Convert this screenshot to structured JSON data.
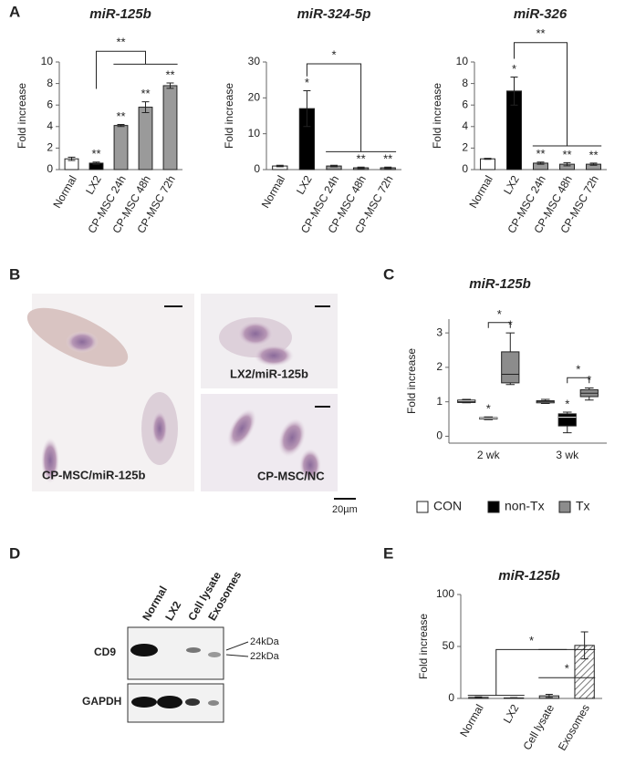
{
  "chart_data": [
    {
      "type": "bar",
      "panel": "A",
      "title": "miR-125b",
      "ylabel": "Fold increase",
      "categories": [
        "Normal",
        "LX2",
        "CP-MSC 24h",
        "CP-MSC 48h",
        "CP-MSC 72h"
      ],
      "values": [
        1,
        0.6,
        4.1,
        5.8,
        7.8
      ],
      "errors": [
        0.15,
        0.1,
        0.1,
        0.5,
        0.25
      ],
      "colors": [
        "#ffffff",
        "#000000",
        "#9a9a9a",
        "#9a9a9a",
        "#9a9a9a"
      ],
      "stars": [
        null,
        "**",
        "**",
        "**",
        "**"
      ],
      "annotations": [
        "**"
      ],
      "ylim": [
        0,
        10
      ],
      "yticks": [
        0,
        2,
        4,
        6,
        8,
        10
      ]
    },
    {
      "type": "bar",
      "title": "miR-324-5p",
      "ylabel": "Fold increase",
      "categories": [
        "Normal",
        "LX2",
        "CP-MSC 24h",
        "CP-MSC 48h",
        "CP-MSC 72h"
      ],
      "values": [
        1,
        17,
        1,
        0.5,
        0.5
      ],
      "errors": [
        0.2,
        5,
        0.2,
        0.2,
        0.2
      ],
      "colors": [
        "#ffffff",
        "#000000",
        "#9a9a9a",
        "#9a9a9a",
        "#9a9a9a"
      ],
      "stars": [
        null,
        "*",
        null,
        "**",
        "**"
      ],
      "annotations": [
        "*"
      ],
      "ylim": [
        0,
        30
      ],
      "yticks": [
        0,
        10,
        20,
        30
      ]
    },
    {
      "type": "bar",
      "title": "miR-326",
      "ylabel": "Fold increase",
      "categories": [
        "Normal",
        "LX2",
        "CP-MSC 24h",
        "CP-MSC 48h",
        "CP-MSC 72h"
      ],
      "values": [
        1,
        7.3,
        0.6,
        0.5,
        0.5
      ],
      "errors": [
        0.05,
        1.3,
        0.1,
        0.15,
        0.1
      ],
      "colors": [
        "#ffffff",
        "#000000",
        "#9a9a9a",
        "#9a9a9a",
        "#9a9a9a"
      ],
      "stars": [
        null,
        "*",
        "**",
        "**",
        "**"
      ],
      "annotations": [
        "**"
      ],
      "ylim": [
        0,
        10
      ],
      "yticks": [
        0,
        2,
        4,
        6,
        8,
        10
      ]
    },
    {
      "type": "box",
      "panel": "C",
      "title": "miR-125b",
      "ylabel": "Fold increase",
      "categories": [
        "2 wk",
        "3 wk"
      ],
      "series": [
        {
          "name": "CON",
          "color": "#ffffff",
          "stars": [
            null,
            null
          ],
          "values": [
            {
              "min": 0.97,
              "q1": 0.98,
              "median": 1.0,
              "q3": 1.05,
              "max": 1.07
            },
            {
              "min": 0.95,
              "q1": 0.97,
              "median": 1.0,
              "q3": 1.03,
              "max": 1.07
            }
          ]
        },
        {
          "name": "non-Tx",
          "color": "#000000",
          "stars": [
            "*",
            "*"
          ],
          "values": [
            {
              "min": 0.48,
              "q1": 0.5,
              "median": 0.52,
              "q3": 0.54,
              "max": 0.56
            },
            {
              "min": 0.1,
              "q1": 0.3,
              "median": 0.55,
              "q3": 0.65,
              "max": 0.7
            }
          ]
        },
        {
          "name": "Tx",
          "color": "#8c8c8c",
          "stars": [
            "*",
            "*"
          ],
          "values": [
            {
              "min": 1.5,
              "q1": 1.55,
              "median": 1.8,
              "q3": 2.45,
              "max": 3.0
            },
            {
              "min": 1.05,
              "q1": 1.15,
              "median": 1.25,
              "q3": 1.35,
              "max": 1.4
            }
          ]
        }
      ],
      "annotations": [
        "*",
        "*"
      ],
      "ylim": [
        -0.2,
        3.4
      ],
      "yticks": [
        0,
        1,
        2,
        3
      ]
    },
    {
      "type": "bar",
      "panel": "E",
      "title": "miR-125b",
      "ylabel": "Fold increase",
      "categories": [
        "Normal",
        "LX2",
        "Cell lysate",
        "Exosomes"
      ],
      "values": [
        1,
        0.5,
        2.5,
        51
      ],
      "errors": [
        0.5,
        0.3,
        1.5,
        13
      ],
      "colors": [
        "#ffffff",
        "#ffffff",
        "#bbbbbb",
        "#ffffff"
      ],
      "hatched": [
        false,
        false,
        false,
        true
      ],
      "annotations": [
        "*",
        "*"
      ],
      "ylim": [
        0,
        100
      ],
      "yticks": [
        0,
        50,
        100
      ]
    }
  ],
  "panel_b": {
    "letter": "B",
    "labels": [
      "CP-MSC/miR-125b",
      "LX2/miR-125b",
      "CP-MSC/NC"
    ],
    "scale_bar": "20µm"
  },
  "panel_d": {
    "letter": "D",
    "lanes": [
      "Normal",
      "LX2",
      "Cell lysate",
      "Exosomes"
    ],
    "rows": [
      "CD9",
      "GAPDH"
    ],
    "markers": [
      "24kDa",
      "22kDa"
    ]
  }
}
